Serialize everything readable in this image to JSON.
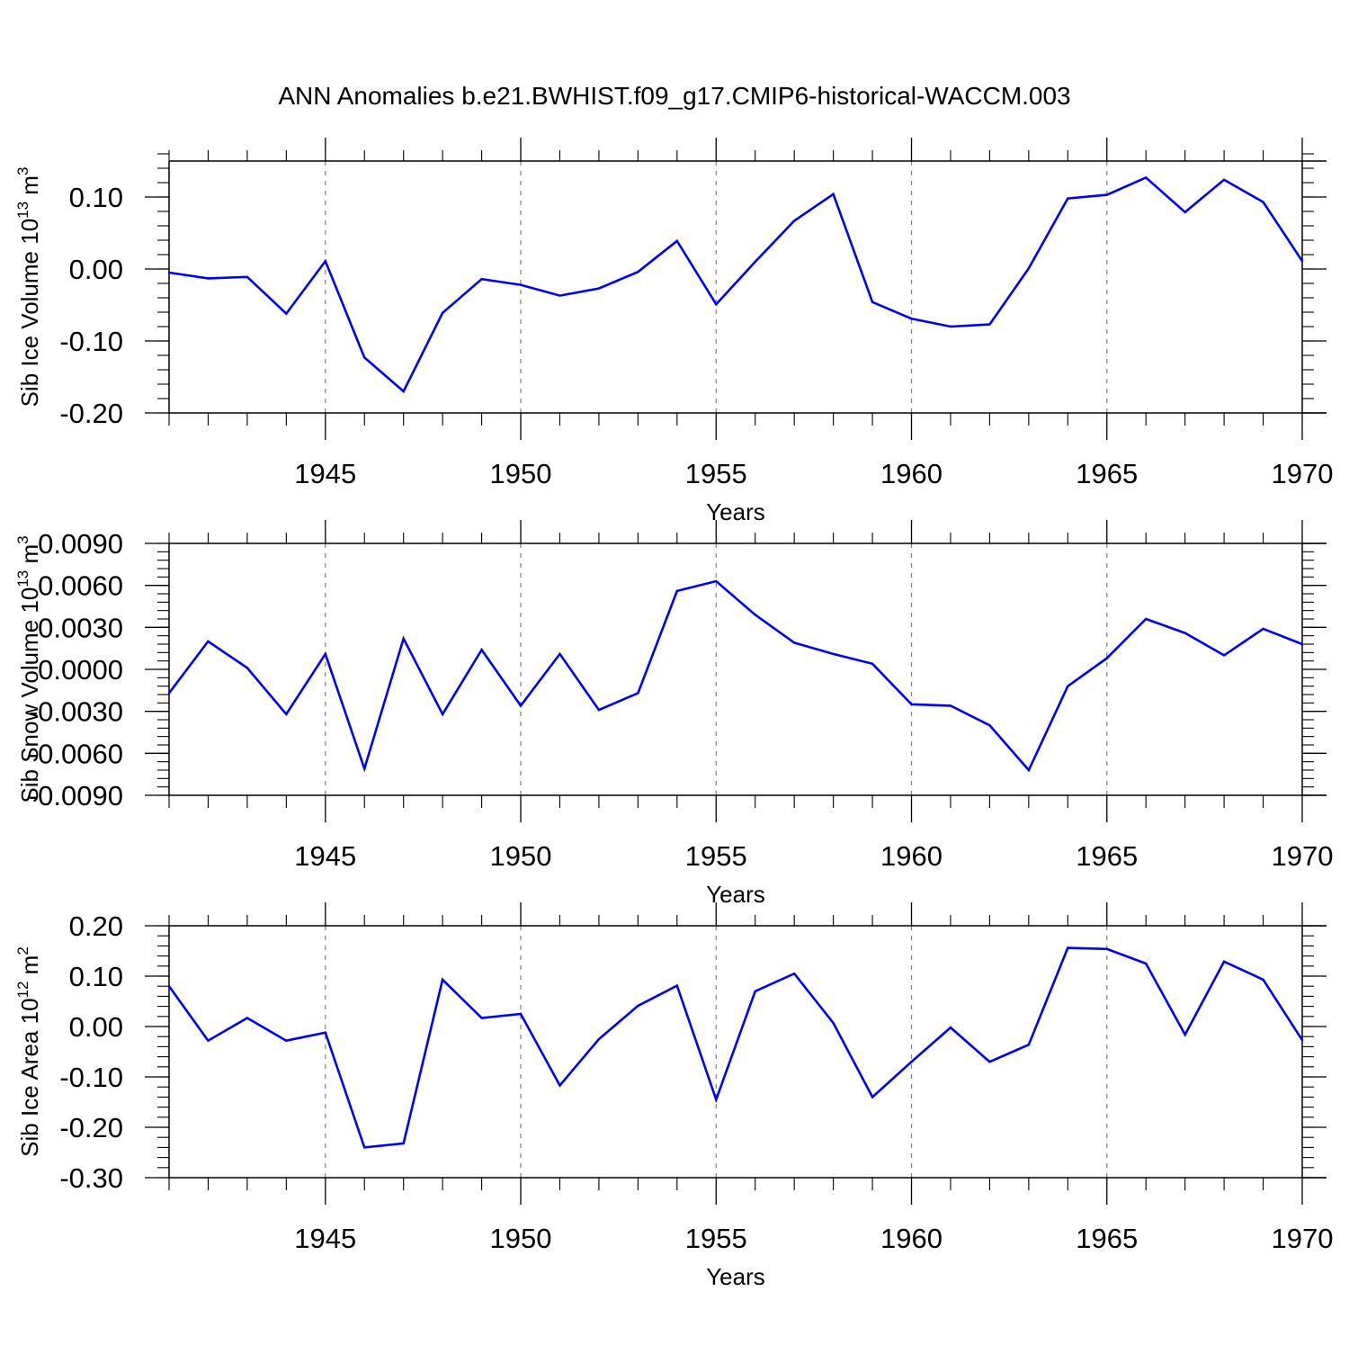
{
  "title": "ANN Anomalies b.e21.BWHIST.f09_g17.CMIP6-historical-WACCM.003",
  "colors": {
    "series": "#0000ff",
    "axis": "#000000",
    "grid": "#808080"
  },
  "chart_data": [
    {
      "type": "line",
      "ylabel_main": "Sib Ice Volume 10",
      "ylabel_exp": "13",
      "ylabel_unit": " m",
      "ylabel_unit_exp": "3",
      "xlabel": "Years",
      "xlim": [
        1941,
        1970
      ],
      "ylim": [
        -0.2,
        0.15
      ],
      "yticks": [
        0.1,
        0.0,
        -0.1,
        -0.2
      ],
      "ytick_labels": [
        "0.10",
        "0.00",
        "-0.10",
        "-0.20"
      ],
      "xticks": [
        1945,
        1950,
        1955,
        1960,
        1965,
        1970
      ],
      "xtick_labels": [
        "1945",
        "1950",
        "1955",
        "1960",
        "1965",
        "1970"
      ],
      "x": [
        1941,
        1942,
        1943,
        1944,
        1945,
        1946,
        1947,
        1948,
        1949,
        1950,
        1951,
        1952,
        1953,
        1954,
        1955,
        1956,
        1957,
        1958,
        1959,
        1960,
        1961,
        1962,
        1963,
        1964,
        1965,
        1966,
        1967,
        1968,
        1969,
        1970
      ],
      "values": [
        -0.005,
        -0.013,
        -0.011,
        -0.062,
        0.011,
        -0.123,
        -0.17,
        -0.061,
        -0.014,
        -0.022,
        -0.037,
        -0.027,
        -0.004,
        0.039,
        -0.049,
        0.01,
        0.067,
        0.104,
        -0.046,
        -0.069,
        -0.08,
        -0.077,
        0.001,
        0.098,
        0.103,
        0.127,
        0.079,
        0.124,
        0.093,
        0.011
      ]
    },
    {
      "type": "line",
      "ylabel_main": "Sib Snow Volume 10",
      "ylabel_exp": "13",
      "ylabel_unit": " m",
      "ylabel_unit_exp": "3",
      "xlabel": "Years",
      "xlim": [
        1941,
        1970
      ],
      "ylim": [
        -0.009,
        0.009
      ],
      "yticks": [
        0.009,
        0.006,
        0.003,
        0.0,
        -0.003,
        -0.006,
        -0.009
      ],
      "ytick_labels": [
        "0.0090",
        "0.0060",
        "0.0030",
        "0.0000",
        "-0.0030",
        "-0.0060",
        "-0.0090"
      ],
      "xticks": [
        1945,
        1950,
        1955,
        1960,
        1965,
        1970
      ],
      "xtick_labels": [
        "1945",
        "1950",
        "1955",
        "1960",
        "1965",
        "1970"
      ],
      "x": [
        1941,
        1942,
        1943,
        1944,
        1945,
        1946,
        1947,
        1948,
        1949,
        1950,
        1951,
        1952,
        1953,
        1954,
        1955,
        1956,
        1957,
        1958,
        1959,
        1960,
        1961,
        1962,
        1963,
        1964,
        1965,
        1966,
        1967,
        1968,
        1969,
        1970
      ],
      "values": [
        -0.0017,
        0.002,
        0.0001,
        -0.0032,
        0.0011,
        -0.0071,
        0.0022,
        -0.0032,
        0.0014,
        -0.0026,
        0.0011,
        -0.0029,
        -0.0017,
        0.0056,
        0.0063,
        0.0039,
        0.0019,
        0.0011,
        0.0004,
        -0.0025,
        -0.0026,
        -0.004,
        -0.0072,
        -0.0012,
        0.0008,
        0.0036,
        0.0026,
        0.001,
        0.0029,
        0.0018
      ]
    },
    {
      "type": "line",
      "ylabel_main": "Sib Ice Area 10",
      "ylabel_exp": "12",
      "ylabel_unit": " m",
      "ylabel_unit_exp": "2",
      "xlabel": "Years",
      "xlim": [
        1941,
        1970
      ],
      "ylim": [
        -0.3,
        0.2
      ],
      "yticks": [
        0.2,
        0.1,
        0.0,
        -0.1,
        -0.2,
        -0.3
      ],
      "ytick_labels": [
        "0.20",
        "0.10",
        "0.00",
        "-0.10",
        "-0.20",
        "-0.30"
      ],
      "xticks": [
        1945,
        1950,
        1955,
        1960,
        1965,
        1970
      ],
      "xtick_labels": [
        "1945",
        "1950",
        "1955",
        "1960",
        "1965",
        "1970"
      ],
      "x": [
        1941,
        1942,
        1943,
        1944,
        1945,
        1946,
        1947,
        1948,
        1949,
        1950,
        1951,
        1952,
        1953,
        1954,
        1955,
        1956,
        1957,
        1958,
        1959,
        1960,
        1961,
        1962,
        1963,
        1964,
        1965,
        1966,
        1967,
        1968,
        1969,
        1970
      ],
      "values": [
        0.08,
        -0.028,
        0.017,
        -0.028,
        -0.012,
        -0.24,
        -0.232,
        0.093,
        0.017,
        0.025,
        -0.117,
        -0.025,
        0.041,
        0.081,
        -0.145,
        0.07,
        0.105,
        0.007,
        -0.14,
        -0.07,
        -0.002,
        -0.07,
        -0.036,
        0.156,
        0.154,
        0.125,
        -0.016,
        0.129,
        0.093,
        -0.027
      ]
    }
  ]
}
